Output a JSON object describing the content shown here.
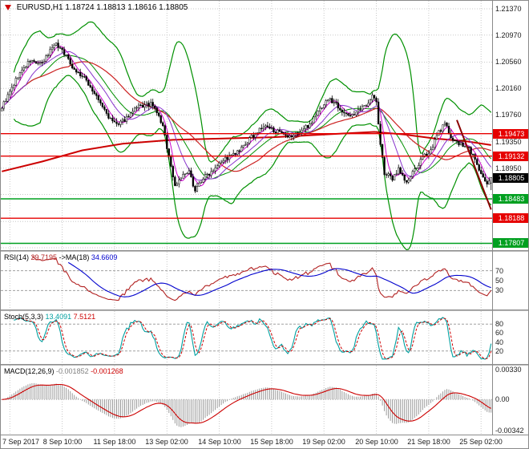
{
  "header": {
    "symbol": "EURUSD,H1",
    "open": "1.18724",
    "high": "1.18813",
    "low": "1.18616",
    "close": "1.18805"
  },
  "colors": {
    "background": "#ffffff",
    "grid": "#c8c8c8",
    "candle_outline": "#000000",
    "bull": "#ffffff",
    "bear": "#000000",
    "bollinger": "#009000",
    "ma_slow": "#cc0000",
    "ma_mid": "#cc2222",
    "ma_fast1": "#cc00cc",
    "ma_fast2": "#8833cc",
    "level_red": "#e60000",
    "level_green": "#00a020",
    "current_price_bg": "#000000",
    "rsi_line": "#b22222",
    "rsi_ma": "#0000cd",
    "stoch_k": "#00a0a0",
    "stoch_d": "#cc0000",
    "macd_hist": "#909090",
    "macd_signal": "#cc0000",
    "axis_text": "#1a1a1a",
    "separator": "#9a9a9a"
  },
  "price_axis": {
    "ticks": [
      {
        "label": "1.21370",
        "v": 1.2137
      },
      {
        "label": "1.20970",
        "v": 1.2097
      },
      {
        "label": "1.20560",
        "v": 1.2056
      },
      {
        "label": "1.20160",
        "v": 1.2016
      },
      {
        "label": "1.19760",
        "v": 1.1976
      },
      {
        "label": "1.19350",
        "v": 1.1935
      },
      {
        "label": "1.18950",
        "v": 1.1895
      },
      {
        "label": "1.18550",
        "v": 1.1855
      },
      {
        "label": "1.18140",
        "v": 1.1814
      },
      {
        "label": "1.17740",
        "v": 1.1774
      }
    ]
  },
  "price_labels": [
    {
      "text": "1.19473",
      "v": 1.19473,
      "color": "#e60000",
      "line": true
    },
    {
      "text": "1.19132",
      "v": 1.19132,
      "color": "#e60000",
      "line": true
    },
    {
      "text": "1.18805",
      "v": 1.18805,
      "color": "#000000",
      "line": false
    },
    {
      "text": "1.18483",
      "v": 1.18483,
      "color": "#00a020",
      "line": true
    },
    {
      "text": "1.18188",
      "v": 1.18188,
      "color": "#e60000",
      "line": true
    },
    {
      "text": "1.17807",
      "v": 1.17807,
      "color": "#00a020",
      "line": true
    }
  ],
  "time_axis": [
    {
      "label": "7 Sep 2017",
      "i": 4
    },
    {
      "label": "8 Sep 10:00",
      "i": 30
    },
    {
      "label": "11 Sep 18:00",
      "i": 56
    },
    {
      "label": "13 Sep 02:00",
      "i": 82
    },
    {
      "label": "14 Sep 10:00",
      "i": 108
    },
    {
      "label": "15 Sep 18:00",
      "i": 134
    },
    {
      "label": "19 Sep 02:00",
      "i": 160
    },
    {
      "label": "20 Sep 10:00",
      "i": 186
    },
    {
      "label": "21 Sep 18:00",
      "i": 212
    },
    {
      "label": "25 Sep 02:00",
      "i": 238
    }
  ],
  "panels": {
    "rsi": {
      "name": "RSI(14)",
      "value": "29.7195",
      "ma_name": "->MA(18)",
      "ma_value": "34.6609",
      "levels": [
        70,
        50,
        30
      ],
      "level_lines": [
        70,
        30
      ]
    },
    "stoch": {
      "name": "Stoch(5,3,3)",
      "k_value": "13.4091",
      "d_value": "7.5121",
      "ticks": [
        80,
        60,
        40,
        20
      ],
      "level_lines": [
        80,
        20
      ]
    },
    "macd": {
      "name": "MACD(12,26,9)",
      "main_value": "-0.001852",
      "signal_value": "-0.001268",
      "ticks": [
        {
          "label": "0.00330",
          "v": 0.0033
        },
        {
          "label": "0.00",
          "v": 0
        },
        {
          "label": "-0.00342",
          "v": -0.00342
        }
      ],
      "range": {
        "top": 0.0033,
        "bot": -0.00342
      }
    }
  },
  "chart_data": [
    {
      "type": "candlestick",
      "title": "EURUSD hourly candles with Bollinger Bands, moving averages and horizontal support/resistance levels",
      "symbol": "EURUSD",
      "timeframe": "H1",
      "bars": 244,
      "seed": 9,
      "noise": 0.0007,
      "wick": 0.0006,
      "scale": {
        "p_top": 1.2137,
        "y_top": 10,
        "p_bot": 1.1774,
        "y_bot": 308
      },
      "last": {
        "o": 1.18724,
        "h": 1.18813,
        "l": 1.18616,
        "c": 1.18805
      },
      "levels": [
        1.19473,
        1.19132,
        1.18483,
        1.18188,
        1.17807
      ],
      "price_path": [
        [
          0,
          1.1988
        ],
        [
          4,
          1.201
        ],
        [
          8,
          1.2035
        ],
        [
          14,
          1.2058
        ],
        [
          20,
          1.2052
        ],
        [
          26,
          1.2085
        ],
        [
          30,
          1.2075
        ],
        [
          36,
          1.2045
        ],
        [
          42,
          1.2028
        ],
        [
          46,
          1.2008
        ],
        [
          50,
          1.1988
        ],
        [
          54,
          1.1968
        ],
        [
          58,
          1.196
        ],
        [
          63,
          1.1975
        ],
        [
          68,
          1.1988
        ],
        [
          74,
          1.1992
        ],
        [
          77,
          1.198
        ],
        [
          80,
          1.1958
        ],
        [
          83,
          1.1912
        ],
        [
          86,
          1.1868
        ],
        [
          89,
          1.1882
        ],
        [
          93,
          1.1888
        ],
        [
          96,
          1.1862
        ],
        [
          100,
          1.188
        ],
        [
          104,
          1.189
        ],
        [
          108,
          1.1905
        ],
        [
          113,
          1.1912
        ],
        [
          118,
          1.192
        ],
        [
          124,
          1.1942
        ],
        [
          130,
          1.1958
        ],
        [
          136,
          1.1952
        ],
        [
          142,
          1.194
        ],
        [
          148,
          1.195
        ],
        [
          153,
          1.1962
        ],
        [
          158,
          1.1985
        ],
        [
          162,
          1.2
        ],
        [
          166,
          1.1993
        ],
        [
          171,
          1.1975
        ],
        [
          176,
          1.1978
        ],
        [
          181,
          1.1992
        ],
        [
          184,
          1.2005
        ],
        [
          186,
          1.1995
        ],
        [
          188,
          1.193
        ],
        [
          190,
          1.1888
        ],
        [
          194,
          1.1878
        ],
        [
          197,
          1.1895
        ],
        [
          201,
          1.1872
        ],
        [
          205,
          1.1892
        ],
        [
          209,
          1.191
        ],
        [
          213,
          1.1922
        ],
        [
          217,
          1.195
        ],
        [
          220,
          1.1962
        ],
        [
          224,
          1.1938
        ],
        [
          228,
          1.193
        ],
        [
          232,
          1.1925
        ],
        [
          235,
          1.1908
        ],
        [
          238,
          1.1885
        ],
        [
          241,
          1.1868
        ],
        [
          243,
          1.18805
        ]
      ],
      "slow_ma_path": [
        [
          0,
          1.189
        ],
        [
          20,
          1.1905
        ],
        [
          40,
          1.1922
        ],
        [
          60,
          1.1932
        ],
        [
          85,
          1.1938
        ],
        [
          110,
          1.194
        ],
        [
          135,
          1.1942
        ],
        [
          160,
          1.1946
        ],
        [
          185,
          1.195
        ],
        [
          200,
          1.1946
        ],
        [
          215,
          1.194
        ],
        [
          230,
          1.1936
        ],
        [
          243,
          1.193
        ]
      ],
      "trend_lines": [
        {
          "from": [
            226,
            1.1968
          ],
          "to": [
            243,
            1.1832
          ],
          "color": "#8b0000",
          "width": 2
        }
      ],
      "overlays": {
        "bollinger": {
          "period": 20,
          "dev": 3
        },
        "ma_fast": [
          5,
          13
        ],
        "ma_mid": 34
      }
    },
    {
      "type": "line",
      "name": "RSI",
      "params": "RSI(14) with MA(18)",
      "derived_from": "candles",
      "last_values": {
        "rsi": 29.7195,
        "ma": 34.6609
      },
      "levels": [
        70,
        50,
        30
      ],
      "y_range": [
        0,
        100
      ]
    },
    {
      "type": "line",
      "name": "Stochastic",
      "params": "Stoch(5,3,3)",
      "derived_from": "candles",
      "last_values": {
        "k": 13.4091,
        "d": 7.5121
      },
      "levels": [
        80,
        20
      ],
      "y_range": [
        0,
        100
      ]
    },
    {
      "type": "bar",
      "name": "MACD",
      "params": "MACD(12,26,9)",
      "derived_from": "candles",
      "last_values": {
        "macd": -0.001852,
        "signal": -0.001268
      },
      "y_range": [
        -0.00342,
        0.0033
      ]
    }
  ]
}
